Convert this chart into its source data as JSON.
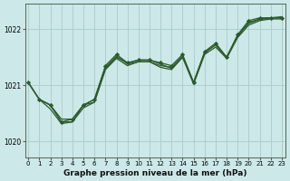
{
  "title": "Graphe pression niveau de la mer (hPa)",
  "bg_color": "#cce8e8",
  "grid_color": "#aacccc",
  "line_color": "#2d5a2d",
  "xlim": [
    -0.3,
    23.3
  ],
  "ylim": [
    1019.72,
    1022.45
  ],
  "yticks": [
    1020,
    1021,
    1022
  ],
  "xticks": [
    0,
    1,
    2,
    3,
    4,
    5,
    6,
    7,
    8,
    9,
    10,
    11,
    12,
    13,
    14,
    15,
    16,
    17,
    18,
    19,
    20,
    21,
    22,
    23
  ],
  "series1_x": [
    0,
    1,
    2,
    3,
    4,
    5,
    6,
    7,
    8,
    9,
    10,
    11,
    12,
    13,
    14,
    15,
    16,
    17,
    18,
    19,
    20,
    21,
    22,
    23
  ],
  "series1_y": [
    1021.05,
    1020.75,
    1020.65,
    1020.35,
    1020.4,
    1020.65,
    1020.75,
    1021.35,
    1021.55,
    1021.4,
    1021.45,
    1021.45,
    1021.4,
    1021.35,
    1021.55,
    1021.05,
    1021.6,
    1021.75,
    1021.5,
    1021.9,
    1022.15,
    1022.2,
    1022.2,
    1022.2
  ],
  "series2_x": [
    1,
    2,
    3,
    4,
    5,
    6,
    7,
    8,
    9,
    10,
    11,
    12,
    13,
    14,
    15,
    16,
    17,
    18,
    19,
    20,
    21,
    22,
    23
  ],
  "series2_y": [
    1020.75,
    1020.65,
    1020.35,
    1020.35,
    1020.65,
    1020.7,
    1021.3,
    1021.5,
    1021.4,
    1021.45,
    1021.45,
    1021.38,
    1021.3,
    1021.5,
    1021.05,
    1021.58,
    1021.72,
    1021.5,
    1021.88,
    1022.12,
    1022.18,
    1022.2,
    1022.22
  ],
  "series3_x": [
    0,
    1,
    2,
    3,
    4,
    5,
    6,
    7,
    8,
    9,
    10,
    11,
    12,
    13,
    14,
    15,
    16,
    17,
    18,
    19,
    20,
    21,
    22,
    23
  ],
  "series3_y": [
    1021.05,
    1020.75,
    1020.65,
    1020.4,
    1020.4,
    1020.65,
    1020.75,
    1021.32,
    1021.52,
    1021.38,
    1021.42,
    1021.42,
    1021.35,
    1021.32,
    1021.52,
    1021.05,
    1021.58,
    1021.72,
    1021.5,
    1021.88,
    1022.1,
    1022.17,
    1022.2,
    1022.2
  ],
  "series4_x": [
    0,
    1,
    2,
    3,
    4,
    5,
    6,
    7,
    8,
    9,
    10,
    11,
    12,
    13,
    14,
    15,
    16,
    17,
    18,
    19,
    20,
    21,
    22,
    23
  ],
  "series4_y": [
    1021.05,
    1020.75,
    1020.58,
    1020.32,
    1020.35,
    1020.6,
    1020.7,
    1021.28,
    1021.48,
    1021.35,
    1021.42,
    1021.42,
    1021.32,
    1021.28,
    1021.5,
    1021.02,
    1021.55,
    1021.68,
    1021.48,
    1021.85,
    1022.07,
    1022.15,
    1022.18,
    1022.18
  ]
}
